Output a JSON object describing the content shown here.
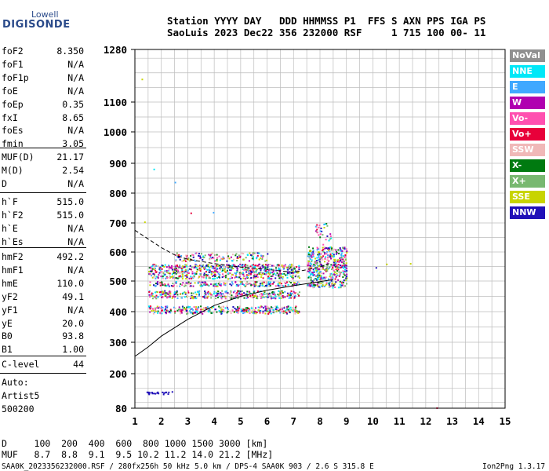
{
  "logo": {
    "line1": "Lowell",
    "line2": "DIGISONDE"
  },
  "header": {
    "line1": "Station YYYY DAY   DDD HHMMSS P1  FFS S AXN PPS IGA PS",
    "line2": "SaoLuis 2023 Dec22 356 232000 RSF     1 715 100 00- 11"
  },
  "params": {
    "group1": [
      {
        "name": "foF2",
        "value": "8.350"
      },
      {
        "name": "foF1",
        "value": "N/A"
      },
      {
        "name": "foF1p",
        "value": "N/A"
      },
      {
        "name": "foE",
        "value": "N/A"
      },
      {
        "name": "foEp",
        "value": "0.35"
      },
      {
        "name": "fxI",
        "value": "8.65"
      },
      {
        "name": "foEs",
        "value": "N/A"
      },
      {
        "name": "fmin",
        "value": "3.05"
      }
    ],
    "group2": [
      {
        "name": "MUF(D)",
        "value": "21.17"
      },
      {
        "name": "M(D)",
        "value": "2.54"
      },
      {
        "name": "D",
        "value": "N/A"
      }
    ],
    "group3": [
      {
        "name": "h`F",
        "value": "515.0"
      },
      {
        "name": "h`F2",
        "value": "515.0"
      },
      {
        "name": "h`E",
        "value": "N/A"
      },
      {
        "name": "h`Es",
        "value": "N/A"
      }
    ],
    "group4": [
      {
        "name": "hmF2",
        "value": "492.2"
      },
      {
        "name": "hmF1",
        "value": "N/A"
      },
      {
        "name": "hmE",
        "value": "110.0"
      },
      {
        "name": "yF2",
        "value": "49.1"
      },
      {
        "name": "yF1",
        "value": "N/A"
      },
      {
        "name": "yE",
        "value": "20.0"
      },
      {
        "name": "B0",
        "value": "93.8"
      },
      {
        "name": "B1",
        "value": "1.00"
      }
    ],
    "clevel": {
      "name": "C-level",
      "value": "44"
    }
  },
  "notes": {
    "auto": "Auto:",
    "artist": "Artist5",
    "code": "500200"
  },
  "bottom": {
    "d_row": "D     100  200  400  600  800 1000 1500 3000 [km]",
    "muf_row": "MUF   8.7  8.8  9.1  9.5 10.2 11.2 14.0 21.2 [MHz]"
  },
  "footer": {
    "left": "SAA0K_2023356232000.RSF / 280fx256h 50 kHz 5.0 km / DPS-4 SAA0K 903 / 2.6 S 315.8 E",
    "right": "Ion2Png 1.3.17"
  },
  "legend": [
    {
      "label": "NoVal",
      "color": "#909090"
    },
    {
      "label": "NNE",
      "color": "#00e8f8"
    },
    {
      "label": "E",
      "color": "#40a8ff"
    },
    {
      "label": "W",
      "color": "#b000b0"
    },
    {
      "label": "Vo-",
      "color": "#ff50b0"
    },
    {
      "label": "Vo+",
      "color": "#e8003a"
    },
    {
      "label": "SSW",
      "color": "#f0b8b8"
    },
    {
      "label": "X-",
      "color": "#007a10"
    },
    {
      "label": "X+",
      "color": "#78b870"
    },
    {
      "label": "SSE",
      "color": "#c8d400"
    },
    {
      "label": "NNW",
      "color": "#2010b8"
    }
  ],
  "chart_data": {
    "type": "scatter",
    "xlabel": "",
    "ylabel": "",
    "x_ticks": [
      "1",
      "2",
      "3",
      "4",
      "5",
      "6",
      "7",
      "8",
      "9",
      "10",
      "11",
      "12",
      "13",
      "14",
      "15"
    ],
    "y_ticks": [
      "80",
      "200",
      "300",
      "400",
      "500",
      "600",
      "700",
      "800",
      "900",
      "1000",
      "1100",
      "1280"
    ],
    "xlim": [
      1,
      15
    ],
    "ylim": [
      80,
      1280
    ],
    "y_tick_values": [
      80,
      200,
      300,
      400,
      500,
      600,
      700,
      800,
      900,
      1000,
      1100,
      1280
    ],
    "grid": true,
    "profile_curve": {
      "x": [
        1.0,
        1.5,
        2.0,
        3.0,
        4.0,
        5.0,
        6.0,
        7.0,
        8.0,
        8.5
      ],
      "y": [
        255,
        285,
        320,
        375,
        420,
        450,
        470,
        485,
        498,
        505
      ]
    },
    "trace_curve": {
      "x": [
        1.0,
        1.5,
        2.0,
        2.5,
        3.0,
        4.0,
        5.0,
        6.0,
        7.0,
        8.0,
        8.35
      ],
      "y": [
        675,
        645,
        615,
        590,
        575,
        560,
        548,
        540,
        530,
        548,
        560
      ]
    },
    "echo_clusters": [
      {
        "x": [
          1.5,
          7.2
        ],
        "y": [
          395,
          420
        ],
        "density": "dense"
      },
      {
        "x": [
          1.5,
          7.2
        ],
        "y": [
          445,
          470
        ],
        "density": "dense"
      },
      {
        "x": [
          1.5,
          7.2
        ],
        "y": [
          485,
          500
        ],
        "density": "dense"
      },
      {
        "x": [
          1.5,
          7.2
        ],
        "y": [
          510,
          560
        ],
        "density": "dense"
      },
      {
        "x": [
          2.5,
          6.0
        ],
        "y": [
          570,
          600
        ],
        "density": "medium"
      },
      {
        "x": [
          7.5,
          9.0
        ],
        "y": [
          480,
          620
        ],
        "density": "dense"
      },
      {
        "x": [
          7.8,
          8.4
        ],
        "y": [
          620,
          700
        ],
        "density": "sparse"
      },
      {
        "x": [
          1.4,
          2.4
        ],
        "y": [
          130,
          140
        ],
        "density": "dense"
      }
    ],
    "isolated_points": [
      {
        "x": 1.25,
        "y": 1180,
        "color": "#c8d400"
      },
      {
        "x": 1.7,
        "y": 882,
        "color": "#00e8f8"
      },
      {
        "x": 2.5,
        "y": 838,
        "color": "#40a8ff"
      },
      {
        "x": 1.35,
        "y": 705,
        "color": "#c8d400"
      },
      {
        "x": 3.1,
        "y": 735,
        "color": "#e8003a"
      },
      {
        "x": 3.95,
        "y": 737,
        "color": "#40a8ff"
      },
      {
        "x": 10.5,
        "y": 560,
        "color": "#c8d400"
      },
      {
        "x": 11.4,
        "y": 562,
        "color": "#c8d400"
      },
      {
        "x": 10.1,
        "y": 548,
        "color": "#2010b8"
      },
      {
        "x": 12.4,
        "y": 83,
        "color": "#e8003a"
      }
    ]
  }
}
